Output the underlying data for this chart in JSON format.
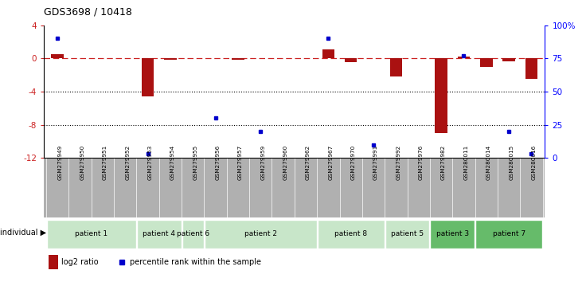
{
  "title": "GDS3698 / 10418",
  "samples": [
    "GSM279949",
    "GSM279950",
    "GSM279951",
    "GSM279952",
    "GSM279953",
    "GSM279954",
    "GSM279955",
    "GSM279956",
    "GSM279957",
    "GSM279959",
    "GSM279960",
    "GSM279962",
    "GSM279967",
    "GSM279970",
    "GSM279991",
    "GSM279992",
    "GSM279976",
    "GSM279982",
    "GSM280011",
    "GSM280014",
    "GSM280015",
    "GSM280016"
  ],
  "log2_ratio": [
    0.5,
    0.0,
    0.0,
    0.0,
    -4.6,
    -0.15,
    0.0,
    0.0,
    -0.15,
    0.0,
    0.0,
    0.0,
    1.1,
    -0.4,
    0.0,
    -2.2,
    0.0,
    -9.0,
    0.2,
    -1.0,
    -0.3,
    -2.5
  ],
  "percentile": [
    90,
    null,
    null,
    null,
    3,
    null,
    null,
    30,
    null,
    20,
    null,
    null,
    90,
    null,
    10,
    null,
    null,
    null,
    77,
    null,
    20,
    3
  ],
  "patients": [
    {
      "label": "patient 1",
      "start": 0,
      "end": 4,
      "color": "#c8e6c9"
    },
    {
      "label": "patient 4",
      "start": 4,
      "end": 6,
      "color": "#c8e6c9"
    },
    {
      "label": "patient 6",
      "start": 6,
      "end": 7,
      "color": "#c8e6c9"
    },
    {
      "label": "patient 2",
      "start": 7,
      "end": 12,
      "color": "#c8e6c9"
    },
    {
      "label": "patient 8",
      "start": 12,
      "end": 15,
      "color": "#c8e6c9"
    },
    {
      "label": "patient 5",
      "start": 15,
      "end": 17,
      "color": "#c8e6c9"
    },
    {
      "label": "patient 3",
      "start": 17,
      "end": 19,
      "color": "#66bb6a"
    },
    {
      "label": "patient 7",
      "start": 19,
      "end": 22,
      "color": "#66bb6a"
    }
  ],
  "bar_color": "#aa1111",
  "dot_color": "#0000cc",
  "dashed_line_color": "#cc2222",
  "ylim_left": [
    -12,
    4
  ],
  "ylim_right": [
    0,
    100
  ],
  "yticks_left": [
    4,
    0,
    -4,
    -8,
    -12
  ],
  "ytick_labels_right": [
    "100%",
    "75",
    "50",
    "25",
    "0"
  ],
  "hlines": [
    -4,
    -8
  ],
  "background_color": "#ffffff",
  "sample_bg": "#b0b0b0"
}
